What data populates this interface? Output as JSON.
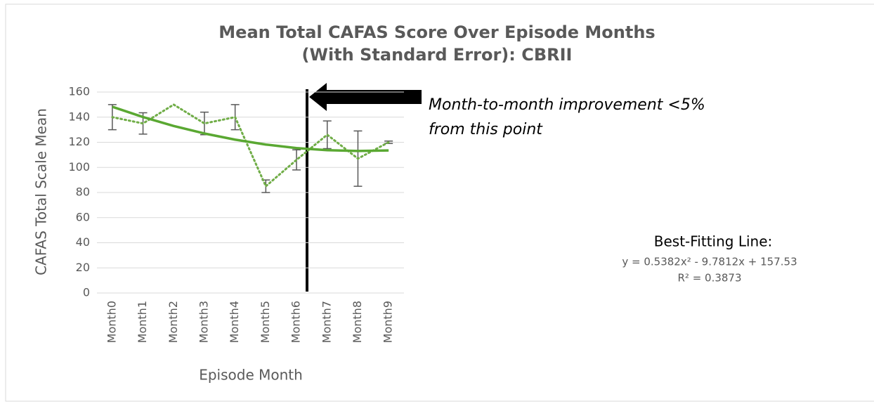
{
  "chart_data": {
    "type": "line",
    "title": [
      "Mean Total CAFAS Score Over Episode Months",
      "(With Standard Error): CBRII"
    ],
    "y_label": "CAFAS Total Scale Mean",
    "x_label": "Episode Month",
    "categories": [
      "Month0",
      "Month1",
      "Month2",
      "Month3",
      "Month4",
      "Month5",
      "Month6",
      "Month7",
      "Month8",
      "Month9"
    ],
    "series": [
      {
        "color": "#70ad47",
        "values": [
          140,
          135,
          150,
          135,
          140,
          85,
          106,
          126,
          107,
          120
        ],
        "errors": [
          10,
          8.5,
          null,
          9,
          10,
          5,
          8,
          11,
          22,
          1
        ]
      }
    ],
    "trendline": {
      "color": "#5aa832",
      "values": [
        148.3,
        140.1,
        133.0,
        127.0,
        122.1,
        118.2,
        115.4,
        113.7,
        113.1,
        113.5
      ],
      "label": "Best-Fitting Line:",
      "equation": "y = 0.5382x² - 9.7812x + 157.53",
      "r2": "R² = 0.3873"
    },
    "annotation": [
      "Month-to-month improvement <5%",
      "from this point"
    ],
    "ylim": [
      0,
      160
    ],
    "yticks": [
      0,
      20,
      40,
      60,
      80,
      100,
      120,
      140,
      160
    ],
    "grid": true
  }
}
